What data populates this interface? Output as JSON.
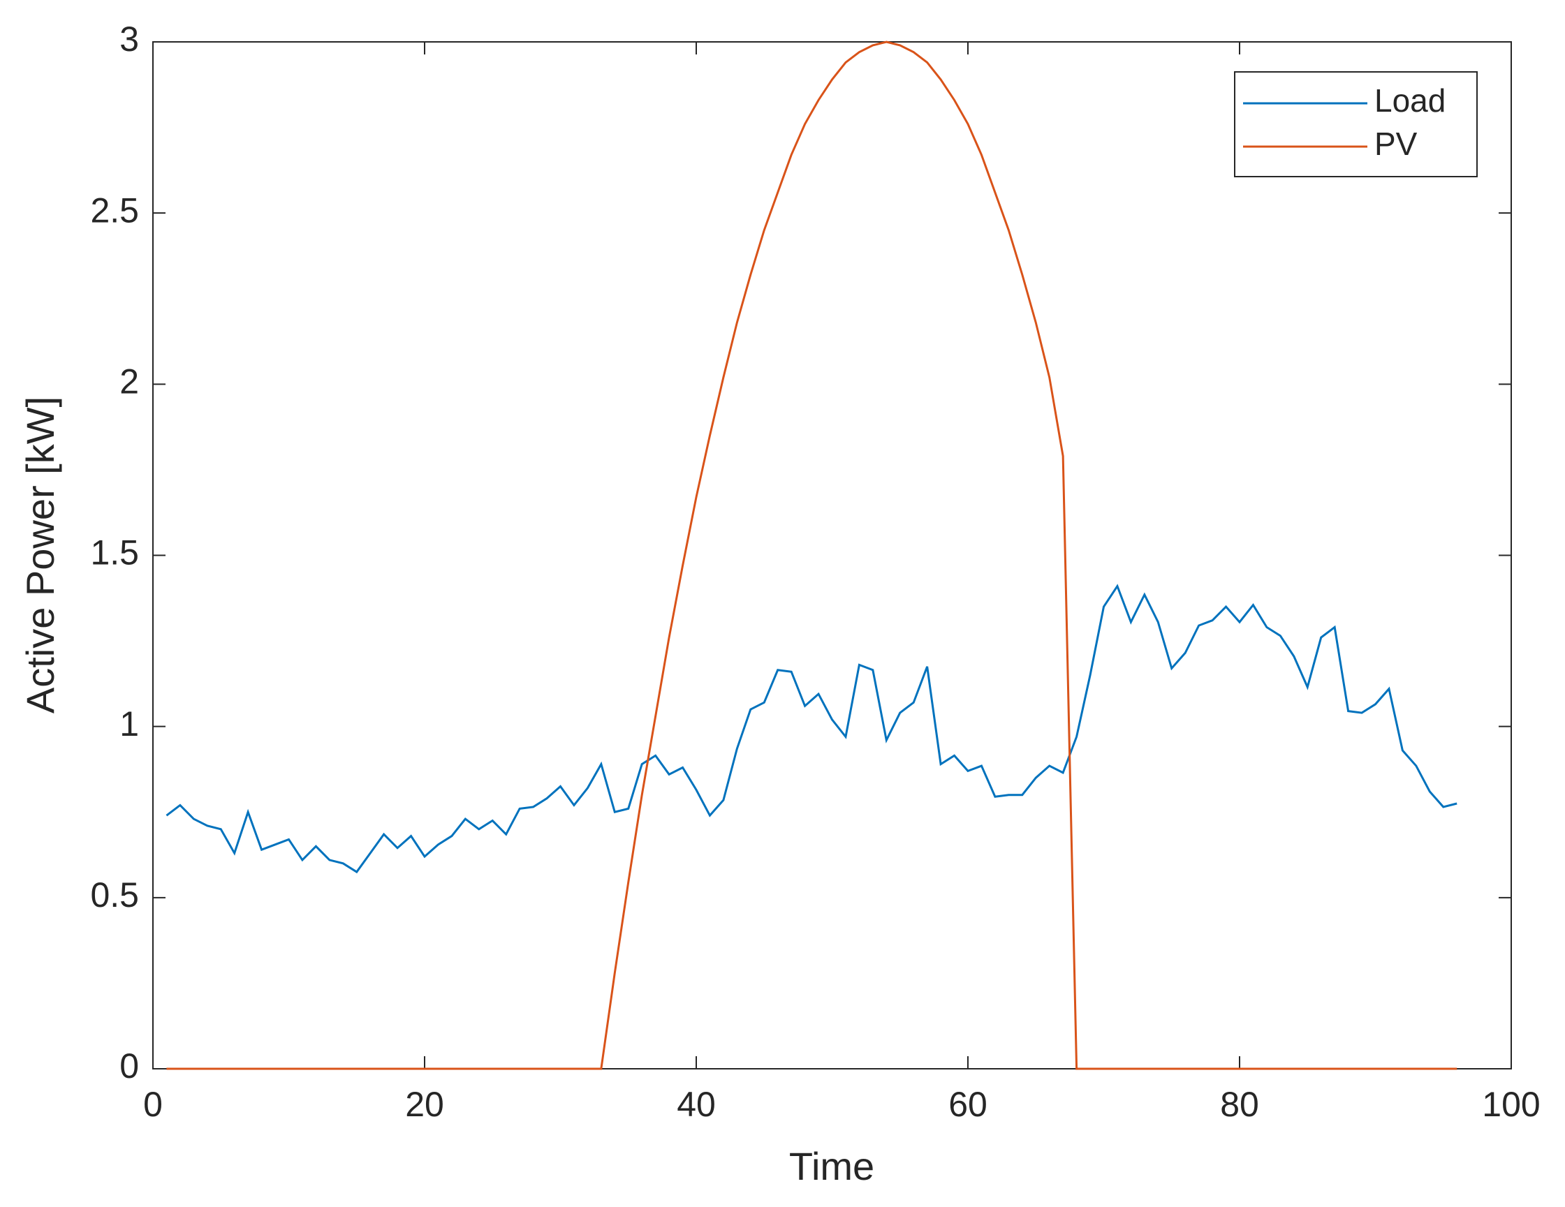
{
  "chart_data": {
    "type": "line",
    "xlabel": "Time",
    "ylabel": "Active Power [kW]",
    "x": [
      1,
      2,
      3,
      4,
      5,
      6,
      7,
      8,
      9,
      10,
      11,
      12,
      13,
      14,
      15,
      16,
      17,
      18,
      19,
      20,
      21,
      22,
      23,
      24,
      25,
      26,
      27,
      28,
      29,
      30,
      31,
      32,
      33,
      34,
      35,
      36,
      37,
      38,
      39,
      40,
      41,
      42,
      43,
      44,
      45,
      46,
      47,
      48,
      49,
      50,
      51,
      52,
      53,
      54,
      55,
      56,
      57,
      58,
      59,
      60,
      61,
      62,
      63,
      64,
      65,
      66,
      67,
      68,
      69,
      70,
      71,
      72,
      73,
      74,
      75,
      76,
      77,
      78,
      79,
      80,
      81,
      82,
      83,
      84,
      85,
      86,
      87,
      88,
      89,
      90,
      91,
      92,
      93,
      94,
      95,
      96
    ],
    "series": [
      {
        "name": "Load",
        "color": "#0072bd",
        "values": [
          0.74,
          0.77,
          0.73,
          0.71,
          0.7,
          0.63,
          0.75,
          0.64,
          0.655,
          0.67,
          0.61,
          0.65,
          0.61,
          0.6,
          0.575,
          0.63,
          0.685,
          0.645,
          0.68,
          0.62,
          0.655,
          0.68,
          0.73,
          0.7,
          0.725,
          0.685,
          0.76,
          0.765,
          0.79,
          0.825,
          0.77,
          0.82,
          0.89,
          0.75,
          0.76,
          0.89,
          0.915,
          0.86,
          0.88,
          0.815,
          0.74,
          0.785,
          0.935,
          1.05,
          1.07,
          1.165,
          1.16,
          1.06,
          1.095,
          1.02,
          0.97,
          1.18,
          1.165,
          0.96,
          1.04,
          1.07,
          1.175,
          0.89,
          0.915,
          0.87,
          0.885,
          0.795,
          0.8,
          0.8,
          0.85,
          0.885,
          0.865,
          0.97,
          1.15,
          1.35,
          1.41,
          1.305,
          1.385,
          1.305,
          1.17,
          1.215,
          1.295,
          1.31,
          1.35,
          1.305,
          1.355,
          1.29,
          1.265,
          1.205,
          1.115,
          1.26,
          1.29,
          1.045,
          1.04,
          1.065,
          1.11,
          0.93,
          0.885,
          0.81,
          0.765,
          0.775
        ]
      },
      {
        "name": "PV",
        "color": "#d95319",
        "values": [
          0,
          0,
          0,
          0,
          0,
          0,
          0,
          0,
          0,
          0,
          0,
          0,
          0,
          0,
          0,
          0,
          0,
          0,
          0,
          0,
          0,
          0,
          0,
          0,
          0,
          0,
          0,
          0,
          0,
          0,
          0,
          0,
          0,
          0.28,
          0.545,
          0.8,
          1.03,
          1.26,
          1.47,
          1.67,
          1.85,
          2.02,
          2.18,
          2.32,
          2.45,
          2.56,
          2.67,
          2.76,
          2.83,
          2.89,
          2.94,
          2.97,
          2.99,
          3,
          2.99,
          2.97,
          2.94,
          2.89,
          2.83,
          2.76,
          2.67,
          2.56,
          2.45,
          2.32,
          2.18,
          2.02,
          1.79,
          0,
          0,
          0,
          0,
          0,
          0,
          0,
          0,
          0,
          0,
          0,
          0,
          0,
          0,
          0,
          0,
          0,
          0,
          0,
          0,
          0,
          0,
          0,
          0,
          0,
          0,
          0,
          0,
          0
        ]
      }
    ],
    "xlim": [
      0,
      100
    ],
    "xticks": [
      0,
      20,
      40,
      60,
      80,
      100
    ],
    "ylim": [
      0,
      3
    ],
    "yticks": [
      0,
      0.5,
      1,
      1.5,
      2,
      2.5,
      3
    ],
    "grid": false,
    "legend": "top-right"
  }
}
